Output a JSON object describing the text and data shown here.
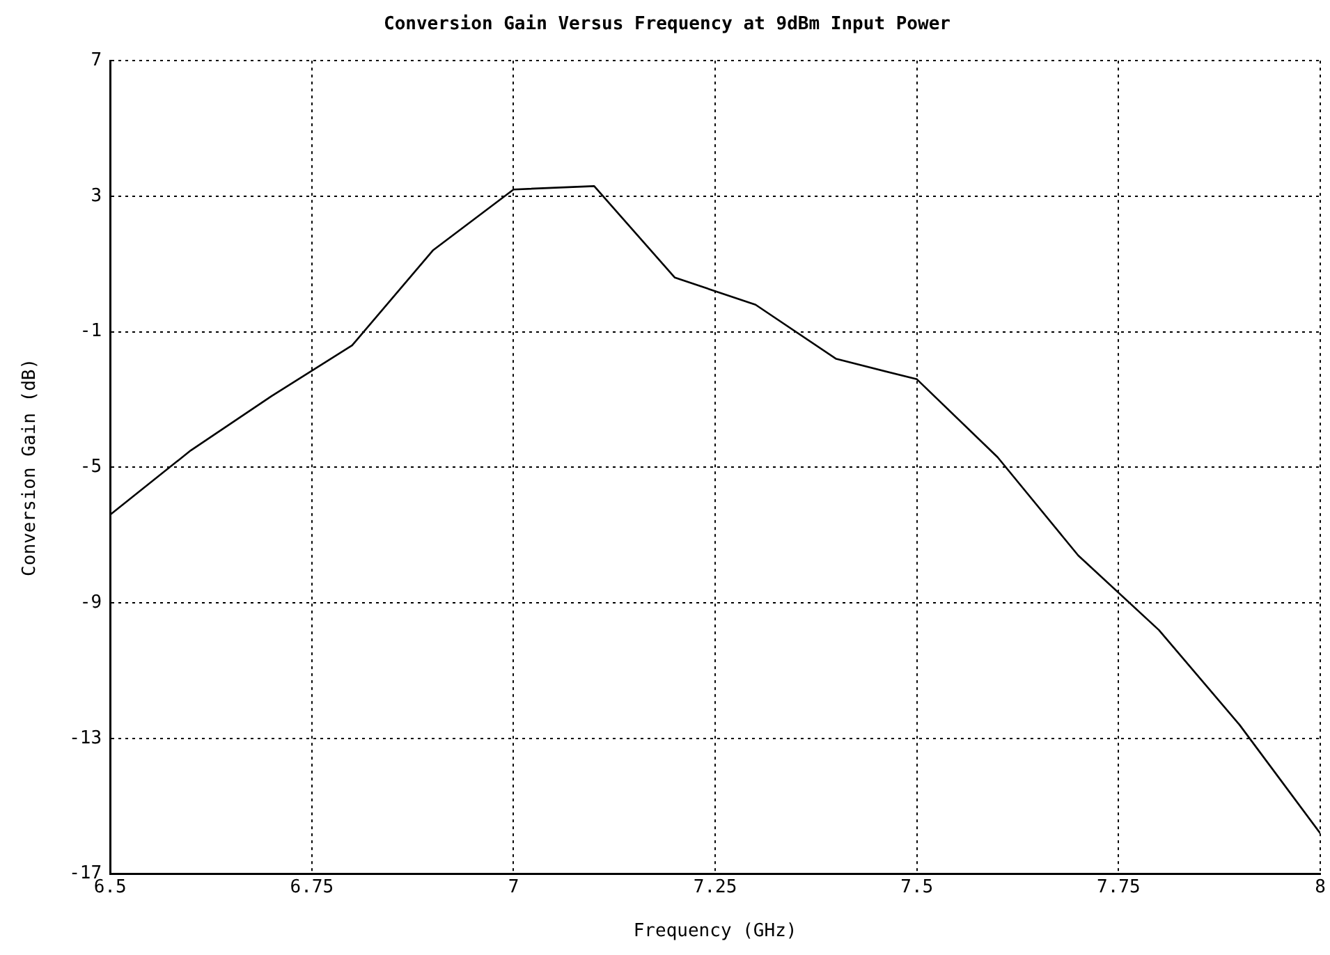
{
  "chart_data": {
    "type": "line",
    "title": "Conversion Gain Versus Frequency at 9dBm Input Power",
    "xlabel": "Frequency (GHz)",
    "ylabel": "Conversion Gain (dB)",
    "x": [
      6.5,
      6.6,
      6.7,
      6.8,
      6.9,
      7.0,
      7.1,
      7.2,
      7.3,
      7.4,
      7.5,
      7.6,
      7.7,
      7.8,
      7.9,
      8.0
    ],
    "series": [
      {
        "color": "#000000",
        "values": [
          -6.4,
          -4.5,
          -2.9,
          -1.4,
          1.4,
          3.2,
          3.3,
          0.6,
          -0.2,
          -1.8,
          -2.4,
          -4.7,
          -7.6,
          -9.8,
          -12.6,
          -15.8
        ]
      }
    ],
    "xlim": [
      6.5,
      8
    ],
    "xticks": [
      6.5,
      6.75,
      7,
      7.25,
      7.5,
      7.75,
      8
    ],
    "ylim": [
      -17,
      7
    ],
    "yticks": [
      -17,
      -13,
      -9,
      -5,
      -1,
      3,
      7
    ],
    "grid": true,
    "legend": false,
    "marker": "none",
    "line_style": "solid"
  }
}
